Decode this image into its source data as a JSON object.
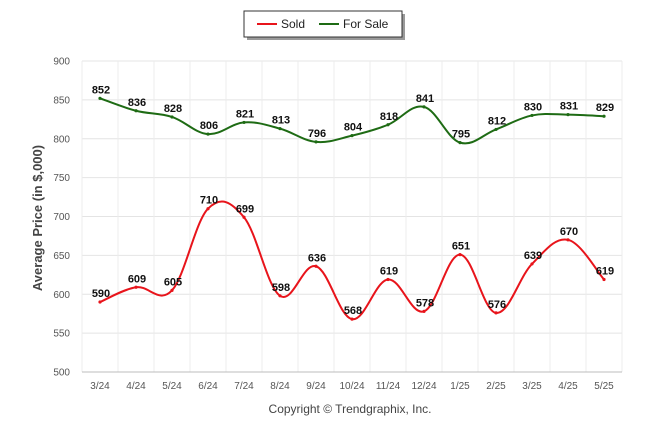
{
  "chart_data": {
    "type": "line",
    "title": "",
    "xlabel": "",
    "ylabel": "Average Price (in $,000)",
    "ylim": [
      500,
      900
    ],
    "yticks": [
      500,
      550,
      600,
      650,
      700,
      750,
      800,
      850,
      900
    ],
    "categories": [
      "3/24",
      "4/24",
      "5/24",
      "6/24",
      "7/24",
      "8/24",
      "9/24",
      "10/24",
      "11/24",
      "12/24",
      "1/25",
      "2/25",
      "3/25",
      "4/25",
      "5/25"
    ],
    "grid": true,
    "legend_position": "top-center",
    "series": [
      {
        "name": "Sold",
        "color": "#e8141b",
        "values": [
          590,
          609,
          605,
          710,
          699,
          598,
          636,
          568,
          619,
          578,
          651,
          576,
          639,
          670,
          619
        ]
      },
      {
        "name": "For Sale",
        "color": "#1e6b14",
        "values": [
          852,
          836,
          828,
          806,
          821,
          813,
          796,
          804,
          818,
          841,
          795,
          812,
          830,
          831,
          829
        ]
      }
    ]
  },
  "footer": {
    "copyright": "Copyright © Trendgraphix, Inc."
  }
}
